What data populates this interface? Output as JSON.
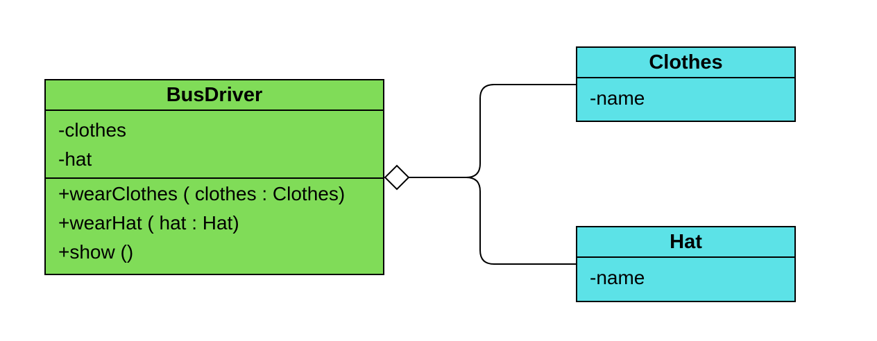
{
  "colors": {
    "busdriver_fill": "#80DC58",
    "component_fill": "#5CE2E7",
    "line": "#000000",
    "diamond_fill": "#FFFFFF"
  },
  "classes": {
    "busdriver": {
      "name": "BusDriver",
      "attributes": [
        "-clothes",
        "-hat"
      ],
      "operations": [
        "+wearClothes ( clothes : Clothes)",
        "+wearHat ( hat : Hat)",
        "+show ()"
      ]
    },
    "clothes": {
      "name": "Clothes",
      "attributes": [
        "-name"
      ]
    },
    "hat": {
      "name": "Hat",
      "attributes": [
        "-name"
      ]
    }
  },
  "relations": [
    {
      "type": "aggregation",
      "whole": "BusDriver",
      "part": "Clothes"
    },
    {
      "type": "aggregation",
      "whole": "BusDriver",
      "part": "Hat"
    }
  ]
}
